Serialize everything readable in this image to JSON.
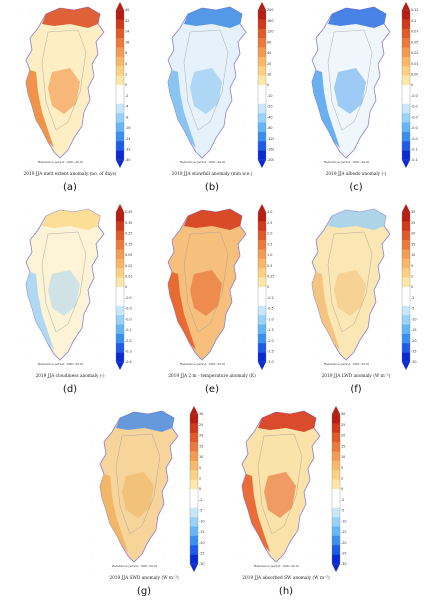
{
  "reference_text": "Reference period: 1981–2010",
  "colorbar_palette": [
    "#0a2ad6",
    "#1f5bea",
    "#3b8ff0",
    "#66b6f5",
    "#98d2f8",
    "#c9e7fb",
    "#ffffff",
    "#ffffff",
    "#fde7a8",
    "#fbd082",
    "#f9b768",
    "#f49a52",
    "#ec7a3c",
    "#e05a2a",
    "#cf3a1c",
    "#b81d12"
  ],
  "map_colors": {
    "a": {
      "land": "#fdeec4",
      "accent": "#f08a3c",
      "accent2": "#d9481f"
    },
    "b": {
      "land": "#e6f2fb",
      "accent": "#7fbff0",
      "accent2": "#3a8ae3"
    },
    "c": {
      "land": "#f0f7fc",
      "accent": "#5aa7ee",
      "accent2": "#2b6fe0"
    },
    "d": {
      "land": "#fdf3d6",
      "accent": "#a9d5f5",
      "accent2": "#fbd98c"
    },
    "e": {
      "land": "#f6c07c",
      "accent": "#e8602a",
      "accent2": "#d23618"
    },
    "f": {
      "land": "#fbe7b3",
      "accent": "#f3c07a",
      "accent2": "#9fd0f2"
    },
    "g": {
      "land": "#f7d49a",
      "accent": "#f0b260",
      "accent2": "#4b8ee8"
    },
    "h": {
      "land": "#fbe2a8",
      "accent": "#e8612c",
      "accent2": "#d42f18"
    }
  },
  "panels": [
    {
      "id": "a",
      "label": "(a)",
      "title": "2019 JJA melt extent anomaly (no. of days)",
      "ticks": [
        "40",
        "32",
        "24",
        "16",
        "8",
        "4",
        "2",
        "0",
        "-2",
        "-4",
        "-8",
        "-16",
        "-24",
        "-32",
        "-40"
      ]
    },
    {
      "id": "b",
      "label": "(b)",
      "title": "2019 JJA snowfall anomaly (mm w.e.)",
      "ticks": [
        "200",
        "160",
        "120",
        "80",
        "40",
        "20",
        "10",
        "0",
        "-10",
        "-20",
        "-40",
        "-80",
        "-120",
        "-160",
        "-200"
      ]
    },
    {
      "id": "c",
      "label": "(c)",
      "title": "2019 JJA albedo anomaly (-)",
      "ticks": [
        "0.125",
        "0.1",
        "0.075",
        "0.05",
        "0.025",
        "0.01",
        "0.005",
        "0",
        "-0.005",
        "-0.01",
        "-0.025",
        "-0.05",
        "-0.075",
        "-0.1",
        "-0.125"
      ]
    },
    {
      "id": "d",
      "label": "(d)",
      "title": "2019 JJA cloudiness anomaly (-)",
      "ticks": [
        "0.45",
        "0.35",
        "0.25",
        "0.15",
        "0.05",
        "0.025",
        "0.01",
        "0",
        "-0.01",
        "-0.025",
        "-0.05",
        "-0.15",
        "-0.25",
        "-0.35",
        "-0.45"
      ]
    },
    {
      "id": "e",
      "label": "(e)",
      "title": "2019 JJA 2 m - temperature anomaly (K)",
      "ticks": [
        "3.0",
        "2.5",
        "2.0",
        "1.5",
        "1.0",
        "0.5",
        "0.25",
        "0",
        "-0.25",
        "-0.5",
        "-1.0",
        "-1.5",
        "-2.0",
        "-2.5",
        "-3.0"
      ]
    },
    {
      "id": "f",
      "label": "(f)",
      "title": "2019 JJA LWD anomaly (W m⁻²)",
      "ticks": [
        "30",
        "25",
        "20",
        "15",
        "10",
        "5",
        "2",
        "0",
        "-2",
        "-5",
        "-10",
        "-15",
        "-20",
        "-25",
        "-30"
      ]
    },
    {
      "id": "g",
      "label": "(g)",
      "title": "2019 JJA SWD anomaly (W m⁻²)",
      "ticks": [
        "30",
        "25",
        "20",
        "15",
        "10",
        "5",
        "2",
        "0",
        "-2",
        "-5",
        "-10",
        "-15",
        "-20",
        "-25",
        "-30"
      ]
    },
    {
      "id": "h",
      "label": "(h)",
      "title": "2019 JJA absorbed SW anomaly (W m⁻²)",
      "ticks": [
        "30",
        "25",
        "20",
        "15",
        "10",
        "5",
        "2",
        "0",
        "-2",
        "-5",
        "-10",
        "-15",
        "-20",
        "-25",
        "-30"
      ]
    }
  ]
}
